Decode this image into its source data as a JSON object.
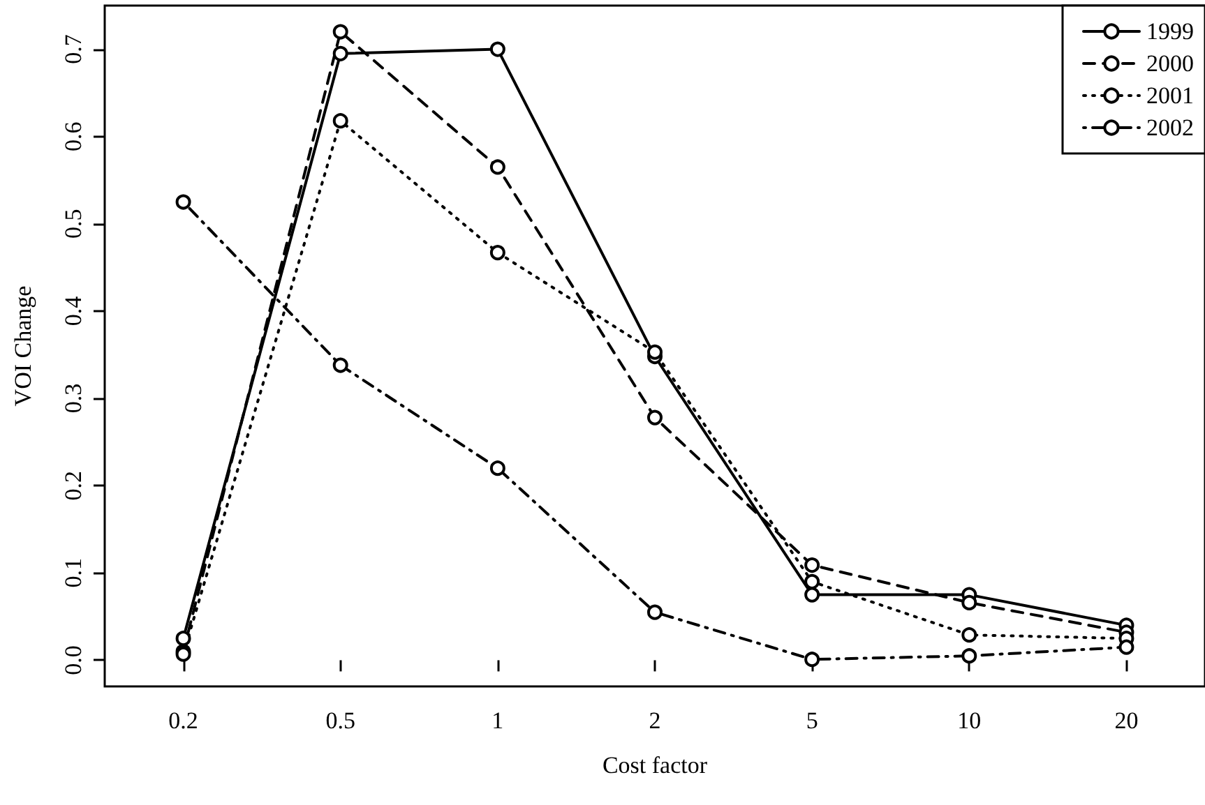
{
  "chart_data": {
    "type": "line",
    "xlabel": "Cost factor",
    "ylabel": "VOI Change",
    "categories": [
      "0.2",
      "0.5",
      "1",
      "2",
      "5",
      "10",
      "20"
    ],
    "series": [
      {
        "name": "1999",
        "color": "#000000",
        "line_style": "solid",
        "values": [
          0.025,
          0.695,
          0.7,
          0.348,
          0.075,
          0.075,
          0.04
        ]
      },
      {
        "name": "2000",
        "color": "#000000",
        "line_style": "dashed",
        "values": [
          0.01,
          0.72,
          0.565,
          0.278,
          0.109,
          0.066,
          0.032
        ]
      },
      {
        "name": "2001",
        "color": "#000000",
        "line_style": "dotted",
        "values": [
          0.007,
          0.618,
          0.467,
          0.353,
          0.09,
          0.029,
          0.025
        ]
      },
      {
        "name": "2002",
        "color": "#000000",
        "line_style": "dashdot",
        "values": [
          0.525,
          0.338,
          0.22,
          0.055,
          0.001,
          0.005,
          0.015
        ]
      }
    ],
    "ylim": [
      -0.03,
      0.75
    ],
    "yticks": [
      {
        "value": 0,
        "label": "0.0"
      },
      0.1,
      0.2,
      0.3,
      0.4,
      0.5,
      0.6,
      0.7
    ],
    "marker": "circle",
    "grid": false,
    "legend": "top right"
  }
}
